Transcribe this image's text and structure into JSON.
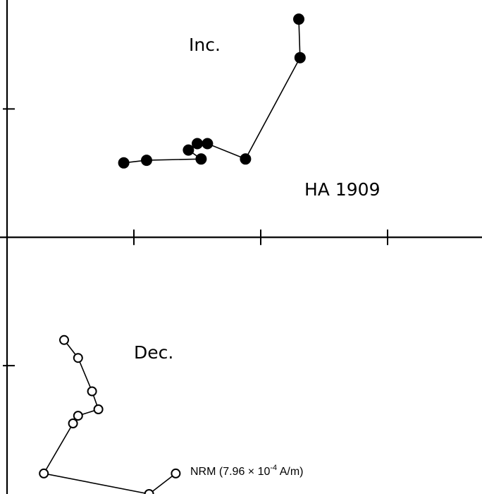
{
  "chart_data": {
    "type": "scatter",
    "title": "HA 1909",
    "subtitle": "",
    "xlabel": "",
    "ylabel": "",
    "grid": false,
    "x_ticks": [
      1,
      2,
      3
    ],
    "y_ticks": [
      -1,
      1
    ],
    "xlim": [
      0,
      3.75
    ],
    "ylim": [
      -2,
      1.75
    ],
    "series": [
      {
        "name": "Inc.",
        "marker": "filled-circle",
        "connected": true,
        "points": [
          {
            "x": 2.3,
            "y": 1.7
          },
          {
            "x": 2.31,
            "y": 1.4
          },
          {
            "x": 1.88,
            "y": 0.61
          },
          {
            "x": 1.58,
            "y": 0.73
          },
          {
            "x": 1.5,
            "y": 0.73
          },
          {
            "x": 1.43,
            "y": 0.68
          },
          {
            "x": 1.53,
            "y": 0.61
          },
          {
            "x": 1.1,
            "y": 0.6
          },
          {
            "x": 0.92,
            "y": 0.58
          }
        ]
      },
      {
        "name": "Dec.",
        "marker": "open-circle",
        "connected": true,
        "points": [
          {
            "x": 1.33,
            "y": -1.84
          },
          {
            "x": 1.12,
            "y": -2.0
          },
          {
            "x": 0.29,
            "y": -1.84
          },
          {
            "x": 0.52,
            "y": -1.45
          },
          {
            "x": 0.56,
            "y": -1.39
          },
          {
            "x": 0.72,
            "y": -1.34
          },
          {
            "x": 0.67,
            "y": -1.2
          },
          {
            "x": 0.56,
            "y": -0.94
          },
          {
            "x": 0.45,
            "y": -0.8
          }
        ]
      }
    ],
    "annotations": {
      "nrm": "NRM (7.96 × 10",
      "nrm_exp": "-4",
      "nrm_unit": " A/m)"
    }
  }
}
